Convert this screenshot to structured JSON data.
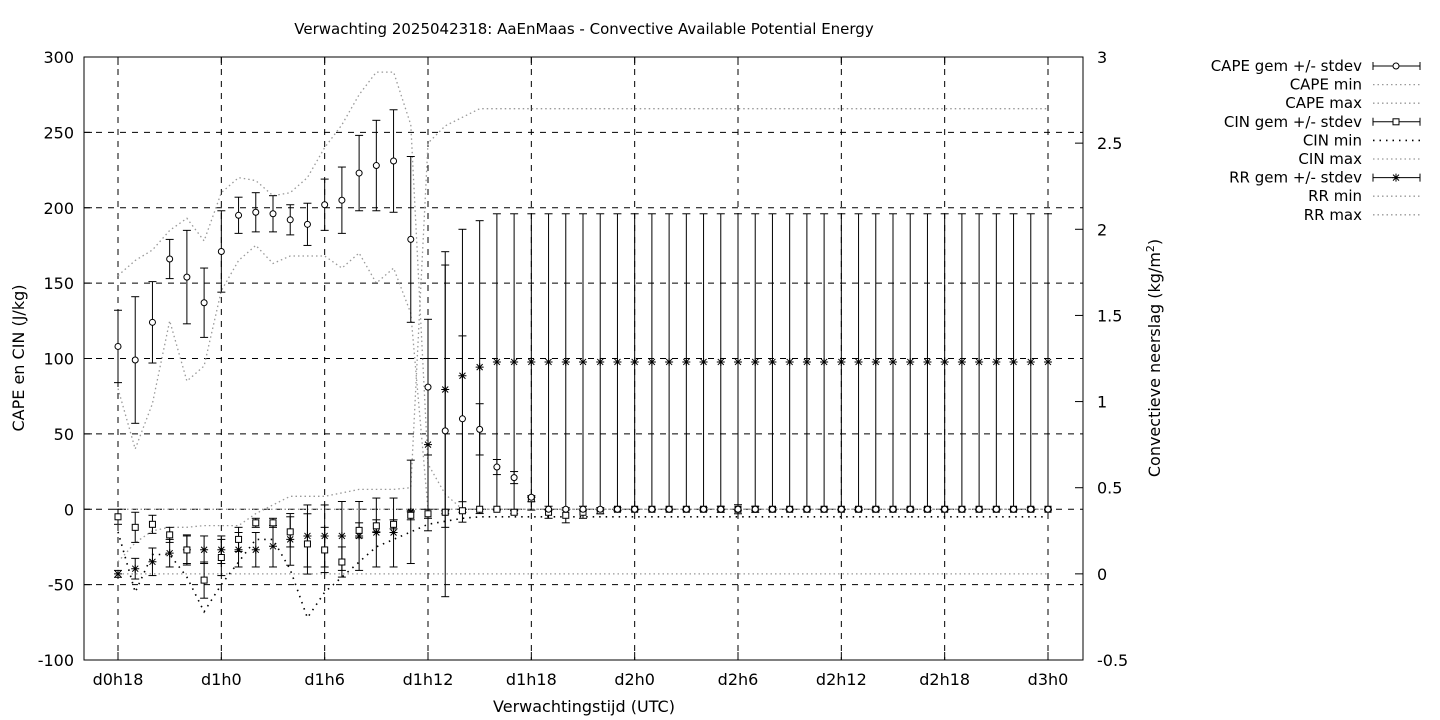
{
  "chart_data": {
    "type": "line",
    "title": "Verwachting 2025042318: AaEnMaas - Convective Available Potential Energy",
    "xlabel": "Verwachtingstijd (UTC)",
    "ylabel": "CAPE en CIN (J/kg)",
    "y2label": "Convectieve neerslag (kg/m²)",
    "y2label_base": "Convectieve neerslag (kg/m",
    "y2label_sup": "2",
    "y2label_end": ")",
    "xlim": [
      18,
      72
    ],
    "ylim": [
      -100,
      300
    ],
    "y2lim": [
      -0.5,
      3
    ],
    "x_ticks": [
      {
        "x": 18,
        "label": "d0h18"
      },
      {
        "x": 24,
        "label": "d1h0"
      },
      {
        "x": 30,
        "label": "d1h6"
      },
      {
        "x": 36,
        "label": "d1h12"
      },
      {
        "x": 42,
        "label": "d1h18"
      },
      {
        "x": 48,
        "label": "d2h0"
      },
      {
        "x": 54,
        "label": "d2h6"
      },
      {
        "x": 60,
        "label": "d2h12"
      },
      {
        "x": 66,
        "label": "d2h18"
      },
      {
        "x": 72,
        "label": "d3h0"
      }
    ],
    "y_ticks": [
      {
        "v": -100,
        "label": "-100"
      },
      {
        "v": -50,
        "label": "-50"
      },
      {
        "v": 0,
        "label": "0"
      },
      {
        "v": 50,
        "label": "50"
      },
      {
        "v": 100,
        "label": "100"
      },
      {
        "v": 150,
        "label": "150"
      },
      {
        "v": 200,
        "label": "200"
      },
      {
        "v": 250,
        "label": "250"
      },
      {
        "v": 300,
        "label": "300"
      }
    ],
    "y2_ticks": [
      {
        "v": -0.5,
        "label": "-0.5"
      },
      {
        "v": 0,
        "label": "0"
      },
      {
        "v": 0.5,
        "label": "0.5"
      },
      {
        "v": 1,
        "label": "1"
      },
      {
        "v": 1.5,
        "label": "1.5"
      },
      {
        "v": 2,
        "label": "2"
      },
      {
        "v": 2.5,
        "label": "2.5"
      },
      {
        "v": 3,
        "label": "3"
      }
    ],
    "grid": true,
    "legend_position": "outside-top-right",
    "legend": [
      "CAPE gem +/- stdev",
      "CAPE min",
      "CAPE max",
      "CIN gem +/- stdev",
      "CIN min",
      "CIN max",
      "RR gem +/- stdev",
      "RR min",
      "RR max"
    ],
    "x": [
      18,
      19,
      20,
      21,
      22,
      23,
      24,
      25,
      26,
      27,
      28,
      29,
      30,
      31,
      32,
      33,
      34,
      35,
      36,
      37,
      38,
      39,
      40,
      41,
      42,
      43,
      44,
      45,
      46,
      47,
      48,
      49,
      50,
      51,
      52,
      53,
      54,
      55,
      56,
      57,
      58,
      59,
      60,
      61,
      62,
      63,
      64,
      65,
      66,
      67,
      68,
      69,
      70,
      71,
      72
    ],
    "cape_mean": [
      108,
      99,
      124,
      166,
      154,
      137,
      171,
      195,
      197,
      196,
      192,
      189,
      202,
      205,
      223,
      228,
      231,
      179,
      81,
      52,
      60,
      53,
      28,
      21,
      8,
      0,
      0,
      0,
      0,
      0,
      0,
      0,
      0,
      0,
      0,
      0,
      0,
      0,
      0,
      0,
      0,
      0,
      0,
      0,
      0,
      0,
      0,
      0,
      0,
      0,
      0,
      0,
      0,
      0,
      0
    ],
    "cape_std": [
      24,
      42,
      27,
      13,
      31,
      23,
      27,
      12,
      13,
      12,
      10,
      14,
      17,
      22,
      25,
      30,
      34,
      55,
      45,
      110,
      55,
      17,
      5,
      4,
      0,
      0,
      0,
      0,
      0,
      0,
      0,
      0,
      0,
      0,
      0,
      0,
      0,
      0,
      0,
      0,
      0,
      0,
      0,
      0,
      0,
      0,
      0,
      0,
      0,
      0,
      0,
      0,
      0,
      0,
      0
    ],
    "cape_min": [
      80,
      40,
      70,
      125,
      85,
      95,
      145,
      165,
      175,
      163,
      168,
      168,
      168,
      160,
      170,
      150,
      160,
      130,
      0,
      0,
      0,
      0,
      0,
      0,
      0,
      0,
      0,
      0,
      0,
      0,
      0,
      0,
      0,
      0,
      0,
      0,
      0,
      0,
      0,
      0,
      0,
      0,
      0,
      0,
      0,
      0,
      0,
      0,
      0,
      0,
      0,
      0,
      0,
      0,
      0
    ],
    "cape_max": [
      155,
      165,
      172,
      185,
      193,
      178,
      210,
      220,
      218,
      208,
      210,
      220,
      240,
      255,
      275,
      290,
      290,
      255,
      30,
      10,
      0,
      0,
      0,
      0,
      0,
      0,
      0,
      0,
      0,
      0,
      0,
      0,
      0,
      0,
      0,
      0,
      0,
      0,
      0,
      0,
      0,
      0,
      0,
      0,
      0,
      0,
      0,
      0,
      0,
      0,
      0,
      0,
      0,
      0,
      0
    ],
    "cin_mean": [
      -5,
      -12,
      -10,
      -17,
      -27,
      -47,
      -32,
      -20,
      -9,
      -9,
      -15,
      -23,
      -27,
      -35,
      -14,
      -11,
      -10,
      -4,
      -3,
      -2,
      -1,
      0,
      0,
      -2,
      7,
      -2,
      -4,
      -2,
      -1,
      0,
      0,
      0,
      0,
      0,
      0,
      0,
      0,
      0,
      0,
      0,
      0,
      0,
      0,
      0,
      0,
      0,
      0,
      0,
      0,
      0,
      0,
      0,
      0,
      0,
      0
    ],
    "cin_std": [
      5,
      10,
      6,
      5,
      10,
      12,
      12,
      8,
      3,
      3,
      10,
      20,
      15,
      10,
      5,
      4,
      3,
      3,
      3,
      1,
      1,
      0,
      0,
      1,
      2,
      4,
      5,
      4,
      2,
      1,
      0,
      0,
      0,
      0,
      1,
      2,
      3,
      2,
      1,
      0,
      0,
      0,
      0,
      1,
      1,
      0,
      1,
      1,
      0,
      0,
      0,
      0,
      0,
      1,
      0
    ],
    "cin_min": [
      -15,
      -55,
      -30,
      -30,
      -45,
      -68,
      -50,
      -35,
      -20,
      -20,
      -40,
      -72,
      -55,
      -45,
      -35,
      -25,
      -20,
      -15,
      -10,
      -8,
      -6,
      -5,
      -5,
      -5,
      -5,
      -5,
      -5,
      -5,
      -5,
      -5,
      -5,
      -5,
      -5,
      -5,
      -5,
      -5,
      -5,
      -5,
      -5,
      -5,
      -5,
      -5,
      -5,
      -5,
      -5,
      -5,
      -5,
      -5,
      -5,
      -5,
      -5,
      -5,
      -5,
      -5,
      -5
    ],
    "cin_max": [
      0,
      0,
      0,
      0,
      0,
      0,
      0,
      0,
      0,
      0,
      0,
      0,
      0,
      0,
      0,
      0,
      0,
      0,
      0,
      0,
      0,
      0,
      0,
      0,
      0,
      0,
      0,
      0,
      0,
      0,
      0,
      0,
      0,
      0,
      0,
      0,
      0,
      0,
      0,
      0,
      0,
      0,
      0,
      0,
      0,
      0,
      0,
      0,
      0,
      0,
      0,
      0,
      0,
      0,
      0
    ],
    "rr_mean": [
      0,
      0.03,
      0.07,
      0.12,
      0.14,
      0.14,
      0.14,
      0.14,
      0.14,
      0.16,
      0.2,
      0.22,
      0.22,
      0.22,
      0.22,
      0.24,
      0.24,
      0.36,
      0.75,
      1.07,
      1.15,
      1.2,
      1.23,
      1.23,
      1.23,
      1.23,
      1.23,
      1.23,
      1.23,
      1.23,
      1.23,
      1.23,
      1.23,
      1.23,
      1.23,
      1.23,
      1.23,
      1.23,
      1.23,
      1.23,
      1.23,
      1.23,
      1.23,
      1.23,
      1.23,
      1.23,
      1.23,
      1.23,
      1.23,
      1.23,
      1.23,
      1.23,
      1.23,
      1.23,
      1.23
    ],
    "rr_std": [
      0.02,
      0.06,
      0.08,
      0.08,
      0.08,
      0.08,
      0.08,
      0.1,
      0.1,
      0.12,
      0.15,
      0.18,
      0.18,
      0.2,
      0.2,
      0.2,
      0.2,
      0.3,
      0.5,
      0.8,
      0.85,
      0.85,
      0.86,
      0.86,
      0.86,
      0.86,
      0.86,
      0.86,
      0.86,
      0.86,
      0.86,
      0.86,
      0.86,
      0.86,
      0.86,
      0.86,
      0.86,
      0.86,
      0.86,
      0.86,
      0.86,
      0.86,
      0.86,
      0.86,
      0.86,
      0.86,
      0.86,
      0.86,
      0.86,
      0.86,
      0.86,
      0.86,
      0.86,
      0.86,
      0.86
    ],
    "rr_min": [
      0,
      0,
      0,
      0,
      0,
      0,
      0,
      0,
      0,
      0,
      0,
      0,
      0,
      0,
      0,
      0,
      0,
      0,
      0,
      0,
      0,
      0,
      0,
      0,
      0,
      0,
      0,
      0,
      0,
      0,
      0,
      0,
      0,
      0,
      0,
      0,
      0,
      0,
      0,
      0,
      0,
      0,
      0,
      0,
      0,
      0,
      0,
      0,
      0,
      0,
      0,
      0,
      0,
      0,
      0
    ],
    "rr_max": [
      0.07,
      0.18,
      0.25,
      0.27,
      0.27,
      0.28,
      0.28,
      0.28,
      0.35,
      0.4,
      0.45,
      0.45,
      0.45,
      0.47,
      0.49,
      0.49,
      0.49,
      0.5,
      2.5,
      2.6,
      2.65,
      2.7,
      2.7,
      2.7,
      2.7,
      2.7,
      2.7,
      2.7,
      2.7,
      2.7,
      2.7,
      2.7,
      2.7,
      2.7,
      2.7,
      2.7,
      2.7,
      2.7,
      2.7,
      2.7,
      2.7,
      2.7,
      2.7,
      2.7,
      2.7,
      2.7,
      2.7,
      2.7,
      2.7,
      2.7,
      2.7,
      2.7,
      2.7,
      2.7,
      2.7
    ]
  }
}
